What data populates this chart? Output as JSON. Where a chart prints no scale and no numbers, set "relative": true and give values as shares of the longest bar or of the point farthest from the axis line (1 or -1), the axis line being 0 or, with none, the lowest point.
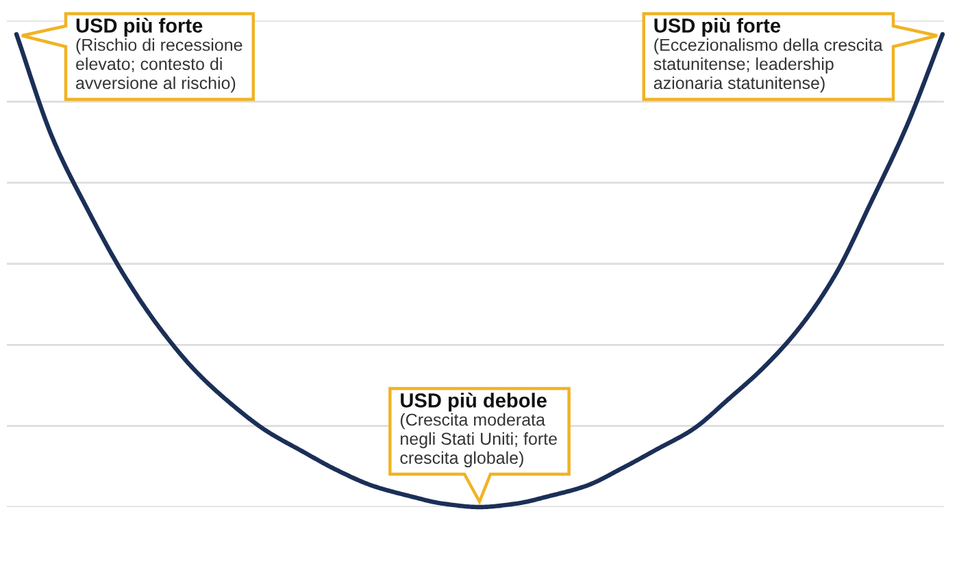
{
  "chart_data": {
    "type": "line",
    "relative": true,
    "categories": [
      null,
      null,
      null,
      null,
      null,
      null,
      null,
      null,
      null,
      null,
      null,
      null,
      null,
      null,
      null,
      null,
      null,
      null,
      null,
      null,
      null,
      null,
      null,
      null,
      null,
      null,
      null
    ],
    "series": [
      {
        "color": "#1b2f57",
        "values": [
          1,
          0.783,
          0.629,
          0.493,
          0.381,
          0.29,
          0.22,
          0.162,
          0.119,
          0.078,
          0.045,
          0.024,
          0.007,
          0,
          0.007,
          0.024,
          0.045,
          0.082,
          0.123,
          0.165,
          0.229,
          0.297,
          0.381,
          0.493,
          0.646,
          0.807,
          1
        ]
      }
    ],
    "grid": "y",
    "annotations": [
      "USD più forte",
      "(Rischio di recessione\nelevato; contesto di\navversione al rischio)",
      "USD più forte",
      "(Eccezionalismo della crescita\nstatunitense; leadership\nazionaria statunitense)",
      "USD più debole",
      "(Crescita moderata\nnegli Stati Uniti; forte\ncrescita globale)"
    ]
  }
}
